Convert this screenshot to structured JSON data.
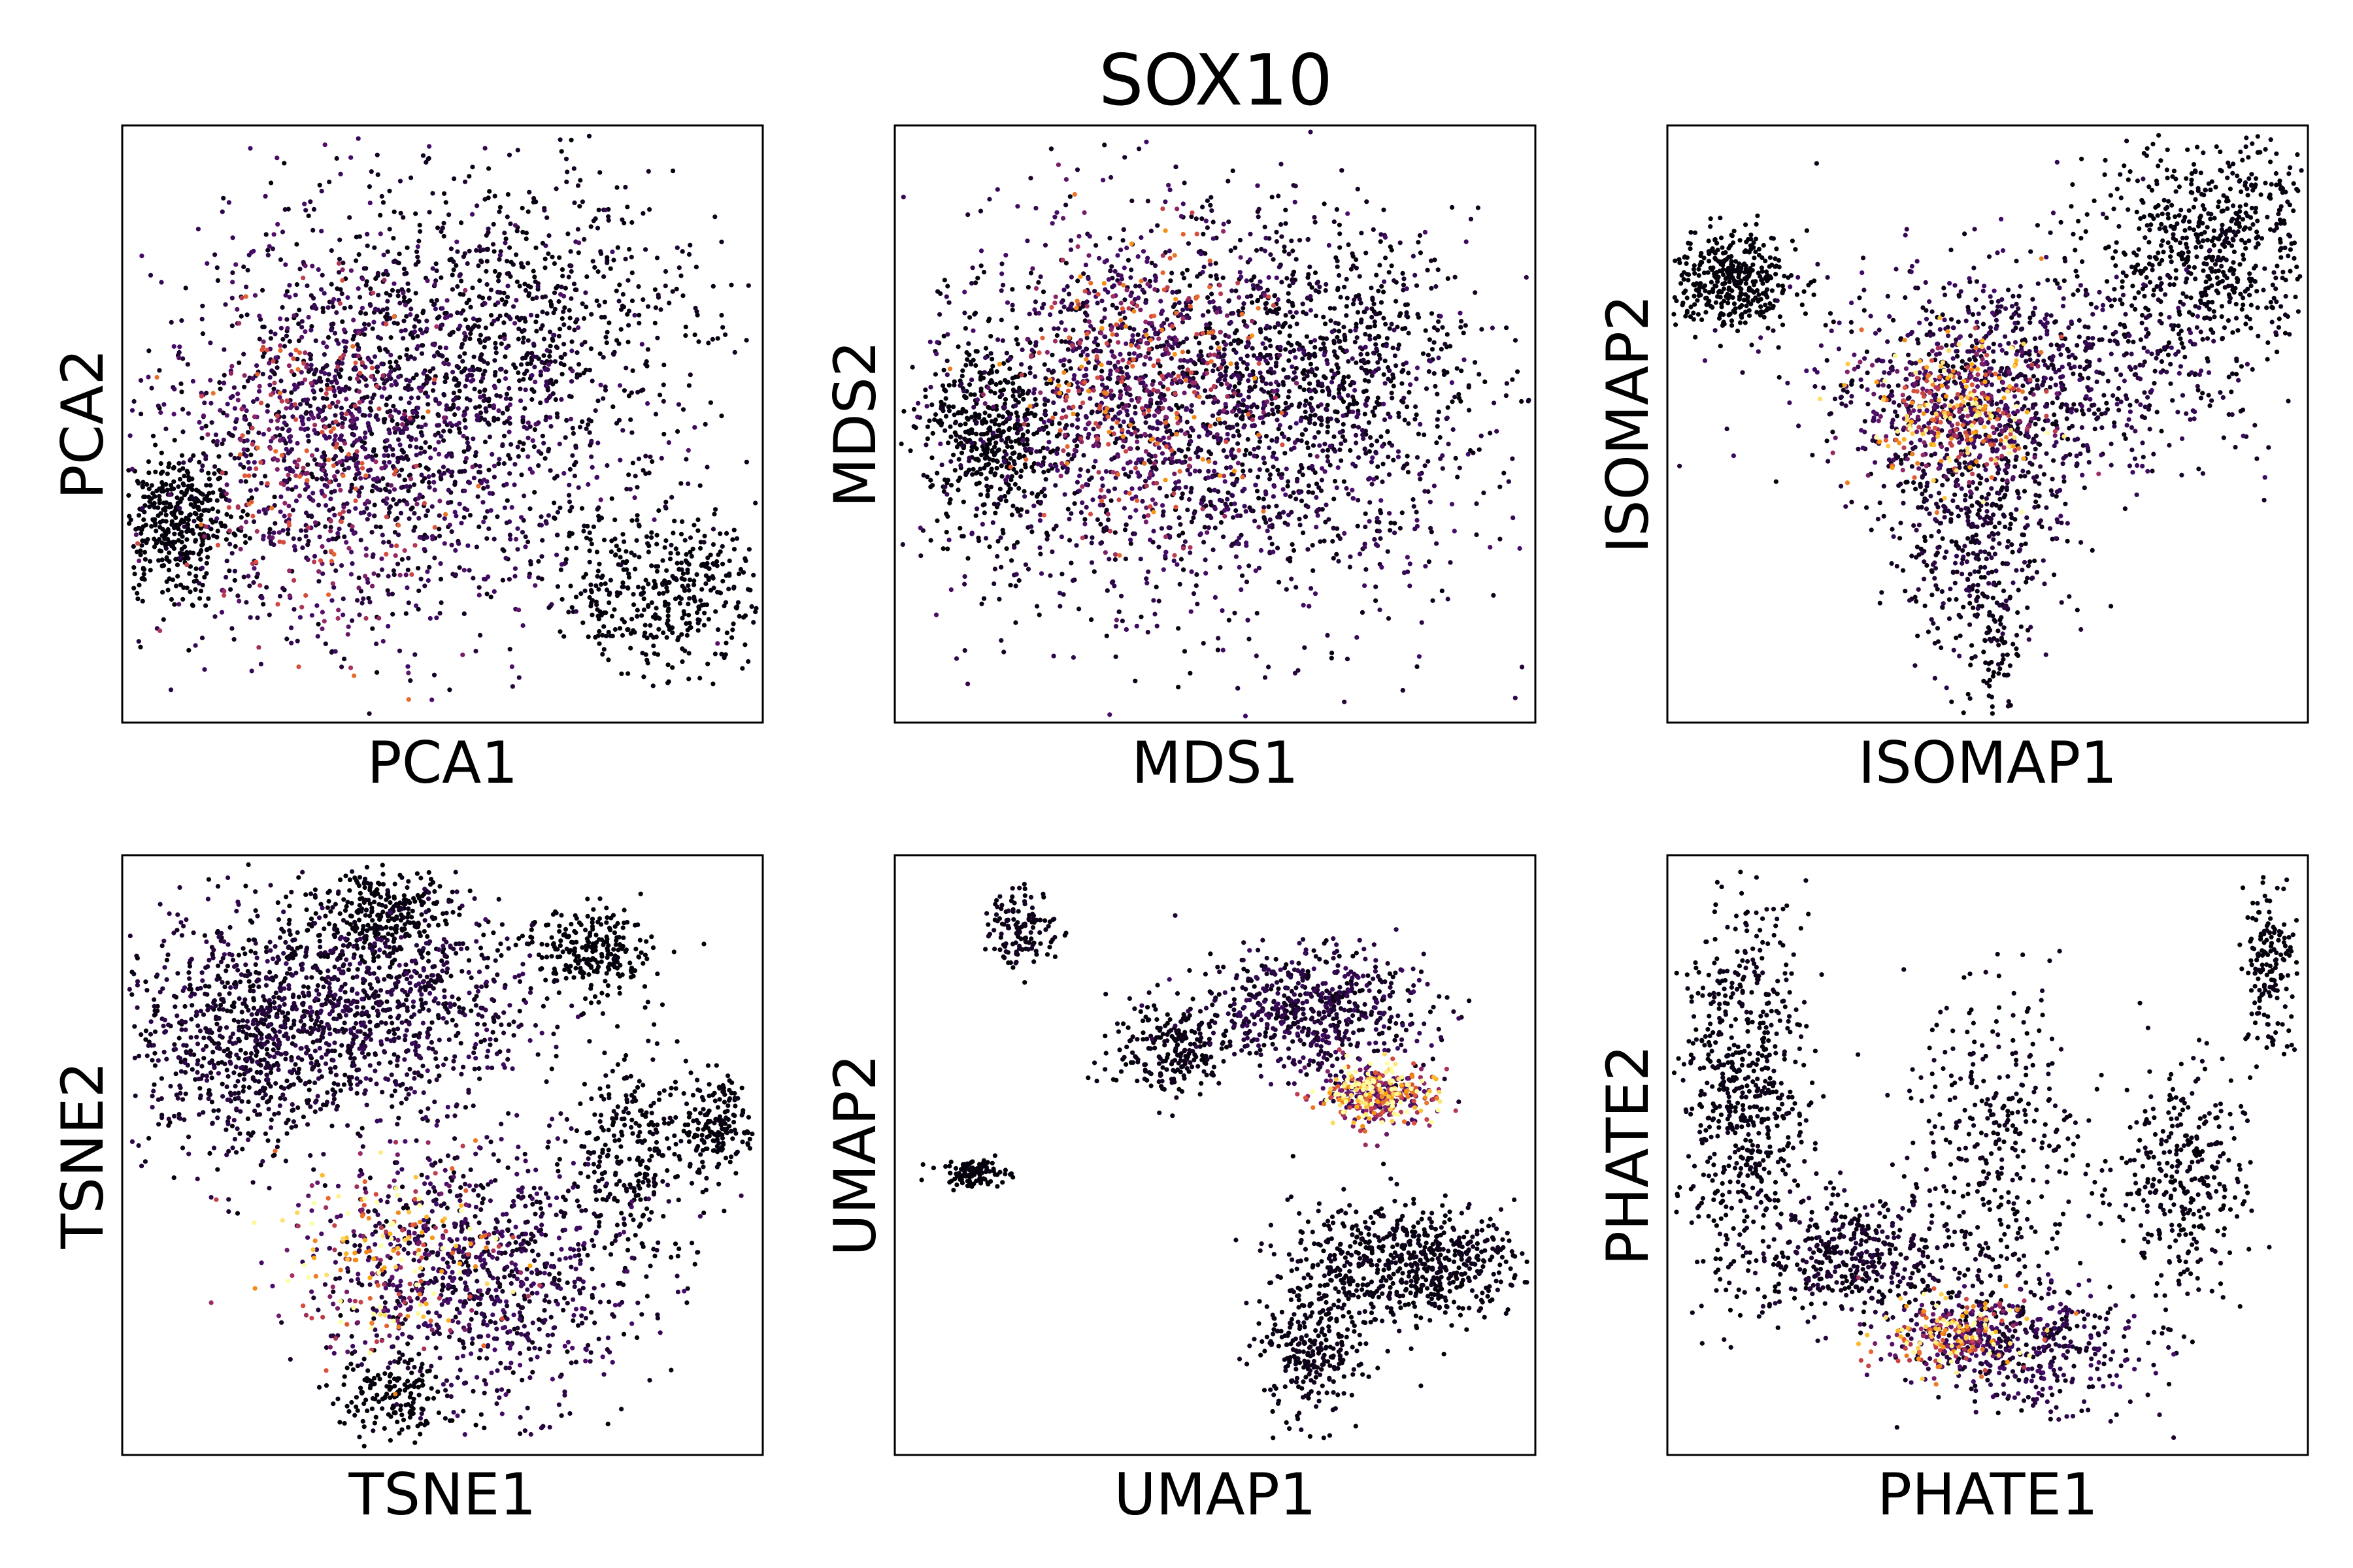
{
  "figure": {
    "title": "SOX10",
    "colormap": "inferno",
    "colors": {
      "low": "#000004",
      "low_mid": "#420a68",
      "mid": "#932667",
      "high_mid": "#dd513a",
      "high": "#fca50a",
      "max": "#fcffa4"
    }
  },
  "chart_data": [
    {
      "type": "scatter",
      "xlabel": "PCA1",
      "ylabel": "PCA2",
      "xticks": [],
      "yticks": [],
      "grid": false,
      "color_variable": "SOX10 expression",
      "clusters": [
        {
          "x": 0.08,
          "y": 0.33,
          "sx": 0.05,
          "sy": 0.06,
          "n": 420,
          "level": 0.02
        },
        {
          "x": 0.42,
          "y": 0.5,
          "sx": 0.18,
          "sy": 0.17,
          "n": 1500,
          "level": 0.2
        },
        {
          "x": 0.3,
          "y": 0.43,
          "sx": 0.1,
          "sy": 0.14,
          "n": 520,
          "level": 0.55
        },
        {
          "x": 0.62,
          "y": 0.68,
          "sx": 0.15,
          "sy": 0.14,
          "n": 650,
          "level": 0.06
        },
        {
          "x": 0.84,
          "y": 0.22,
          "sx": 0.08,
          "sy": 0.07,
          "n": 420,
          "level": 0.03
        }
      ]
    },
    {
      "type": "scatter",
      "xlabel": "MDS1",
      "ylabel": "MDS2",
      "xticks": [],
      "yticks": [],
      "grid": false,
      "color_variable": "SOX10 expression",
      "clusters": [
        {
          "x": 0.15,
          "y": 0.48,
          "sx": 0.05,
          "sy": 0.08,
          "n": 420,
          "level": 0.02
        },
        {
          "x": 0.47,
          "y": 0.5,
          "sx": 0.22,
          "sy": 0.18,
          "n": 1900,
          "level": 0.18
        },
        {
          "x": 0.38,
          "y": 0.57,
          "sx": 0.1,
          "sy": 0.12,
          "n": 650,
          "level": 0.62
        },
        {
          "x": 0.68,
          "y": 0.62,
          "sx": 0.13,
          "sy": 0.1,
          "n": 520,
          "level": 0.05
        }
      ]
    },
    {
      "type": "scatter",
      "xlabel": "ISOMAP1",
      "ylabel": "ISOMAP2",
      "xticks": [],
      "yticks": [],
      "grid": false,
      "color_variable": "SOX10 expression",
      "clusters": [
        {
          "x": 0.1,
          "y": 0.74,
          "sx": 0.05,
          "sy": 0.04,
          "n": 380,
          "level": 0.02
        },
        {
          "x": 0.85,
          "y": 0.8,
          "sx": 0.09,
          "sy": 0.09,
          "n": 650,
          "level": 0.04
        },
        {
          "x": 0.55,
          "y": 0.58,
          "sx": 0.16,
          "sy": 0.1,
          "n": 900,
          "level": 0.16
        },
        {
          "x": 0.45,
          "y": 0.52,
          "sx": 0.07,
          "sy": 0.06,
          "n": 520,
          "level": 0.82
        },
        {
          "x": 0.48,
          "y": 0.33,
          "sx": 0.07,
          "sy": 0.1,
          "n": 420,
          "level": 0.12
        },
        {
          "x": 0.51,
          "y": 0.14,
          "sx": 0.02,
          "sy": 0.07,
          "n": 80,
          "level": 0.05
        }
      ]
    },
    {
      "type": "scatter",
      "xlabel": "TSNE1",
      "ylabel": "TSNE2",
      "xticks": [],
      "yticks": [],
      "grid": false,
      "color_variable": "SOX10 expression",
      "clusters": [
        {
          "x": 0.2,
          "y": 0.7,
          "sx": 0.1,
          "sy": 0.1,
          "n": 900,
          "level": 0.12
        },
        {
          "x": 0.43,
          "y": 0.75,
          "sx": 0.11,
          "sy": 0.08,
          "n": 700,
          "level": 0.15
        },
        {
          "x": 0.4,
          "y": 0.9,
          "sx": 0.06,
          "sy": 0.04,
          "n": 300,
          "level": 0.03
        },
        {
          "x": 0.73,
          "y": 0.84,
          "sx": 0.05,
          "sy": 0.035,
          "n": 240,
          "level": 0.02
        },
        {
          "x": 0.42,
          "y": 0.33,
          "sx": 0.09,
          "sy": 0.08,
          "n": 320,
          "level": 0.9
        },
        {
          "x": 0.57,
          "y": 0.3,
          "sx": 0.12,
          "sy": 0.11,
          "n": 850,
          "level": 0.18
        },
        {
          "x": 0.8,
          "y": 0.5,
          "sx": 0.05,
          "sy": 0.09,
          "n": 280,
          "level": 0.04
        },
        {
          "x": 0.93,
          "y": 0.55,
          "sx": 0.03,
          "sy": 0.04,
          "n": 160,
          "level": 0.03
        },
        {
          "x": 0.42,
          "y": 0.09,
          "sx": 0.04,
          "sy": 0.04,
          "n": 160,
          "level": 0.02
        }
      ]
    },
    {
      "type": "scatter",
      "xlabel": "UMAP1",
      "ylabel": "UMAP2",
      "xticks": [],
      "yticks": [],
      "grid": false,
      "color_variable": "SOX10 expression",
      "clusters": [
        {
          "x": 0.2,
          "y": 0.88,
          "sx": 0.03,
          "sy": 0.03,
          "n": 130,
          "level": 0.06
        },
        {
          "x": 0.12,
          "y": 0.47,
          "sx": 0.025,
          "sy": 0.012,
          "n": 110,
          "level": 0.02
        },
        {
          "x": 0.43,
          "y": 0.68,
          "sx": 0.05,
          "sy": 0.04,
          "n": 220,
          "level": 0.05
        },
        {
          "x": 0.65,
          "y": 0.74,
          "sx": 0.09,
          "sy": 0.05,
          "n": 620,
          "level": 0.15
        },
        {
          "x": 0.75,
          "y": 0.6,
          "sx": 0.045,
          "sy": 0.025,
          "n": 400,
          "level": 0.92
        },
        {
          "x": 0.8,
          "y": 0.32,
          "sx": 0.09,
          "sy": 0.05,
          "n": 650,
          "level": 0.05
        },
        {
          "x": 0.65,
          "y": 0.17,
          "sx": 0.04,
          "sy": 0.06,
          "n": 260,
          "level": 0.05
        }
      ]
    },
    {
      "type": "scatter",
      "xlabel": "PHATE1",
      "ylabel": "PHATE2",
      "xticks": [],
      "yticks": [],
      "grid": false,
      "color_variable": "SOX10 expression",
      "clusters": [
        {
          "x": 0.12,
          "y": 0.6,
          "sx": 0.05,
          "sy": 0.15,
          "n": 650,
          "level": 0.05
        },
        {
          "x": 0.29,
          "y": 0.33,
          "sx": 0.07,
          "sy": 0.05,
          "n": 380,
          "level": 0.1
        },
        {
          "x": 0.51,
          "y": 0.5,
          "sx": 0.07,
          "sy": 0.14,
          "n": 380,
          "level": 0.06
        },
        {
          "x": 0.44,
          "y": 0.2,
          "sx": 0.06,
          "sy": 0.03,
          "n": 280,
          "level": 0.85
        },
        {
          "x": 0.56,
          "y": 0.18,
          "sx": 0.09,
          "sy": 0.05,
          "n": 420,
          "level": 0.18
        },
        {
          "x": 0.8,
          "y": 0.45,
          "sx": 0.05,
          "sy": 0.1,
          "n": 320,
          "level": 0.05
        },
        {
          "x": 0.94,
          "y": 0.82,
          "sx": 0.02,
          "sy": 0.08,
          "n": 160,
          "level": 0.03
        }
      ]
    }
  ]
}
